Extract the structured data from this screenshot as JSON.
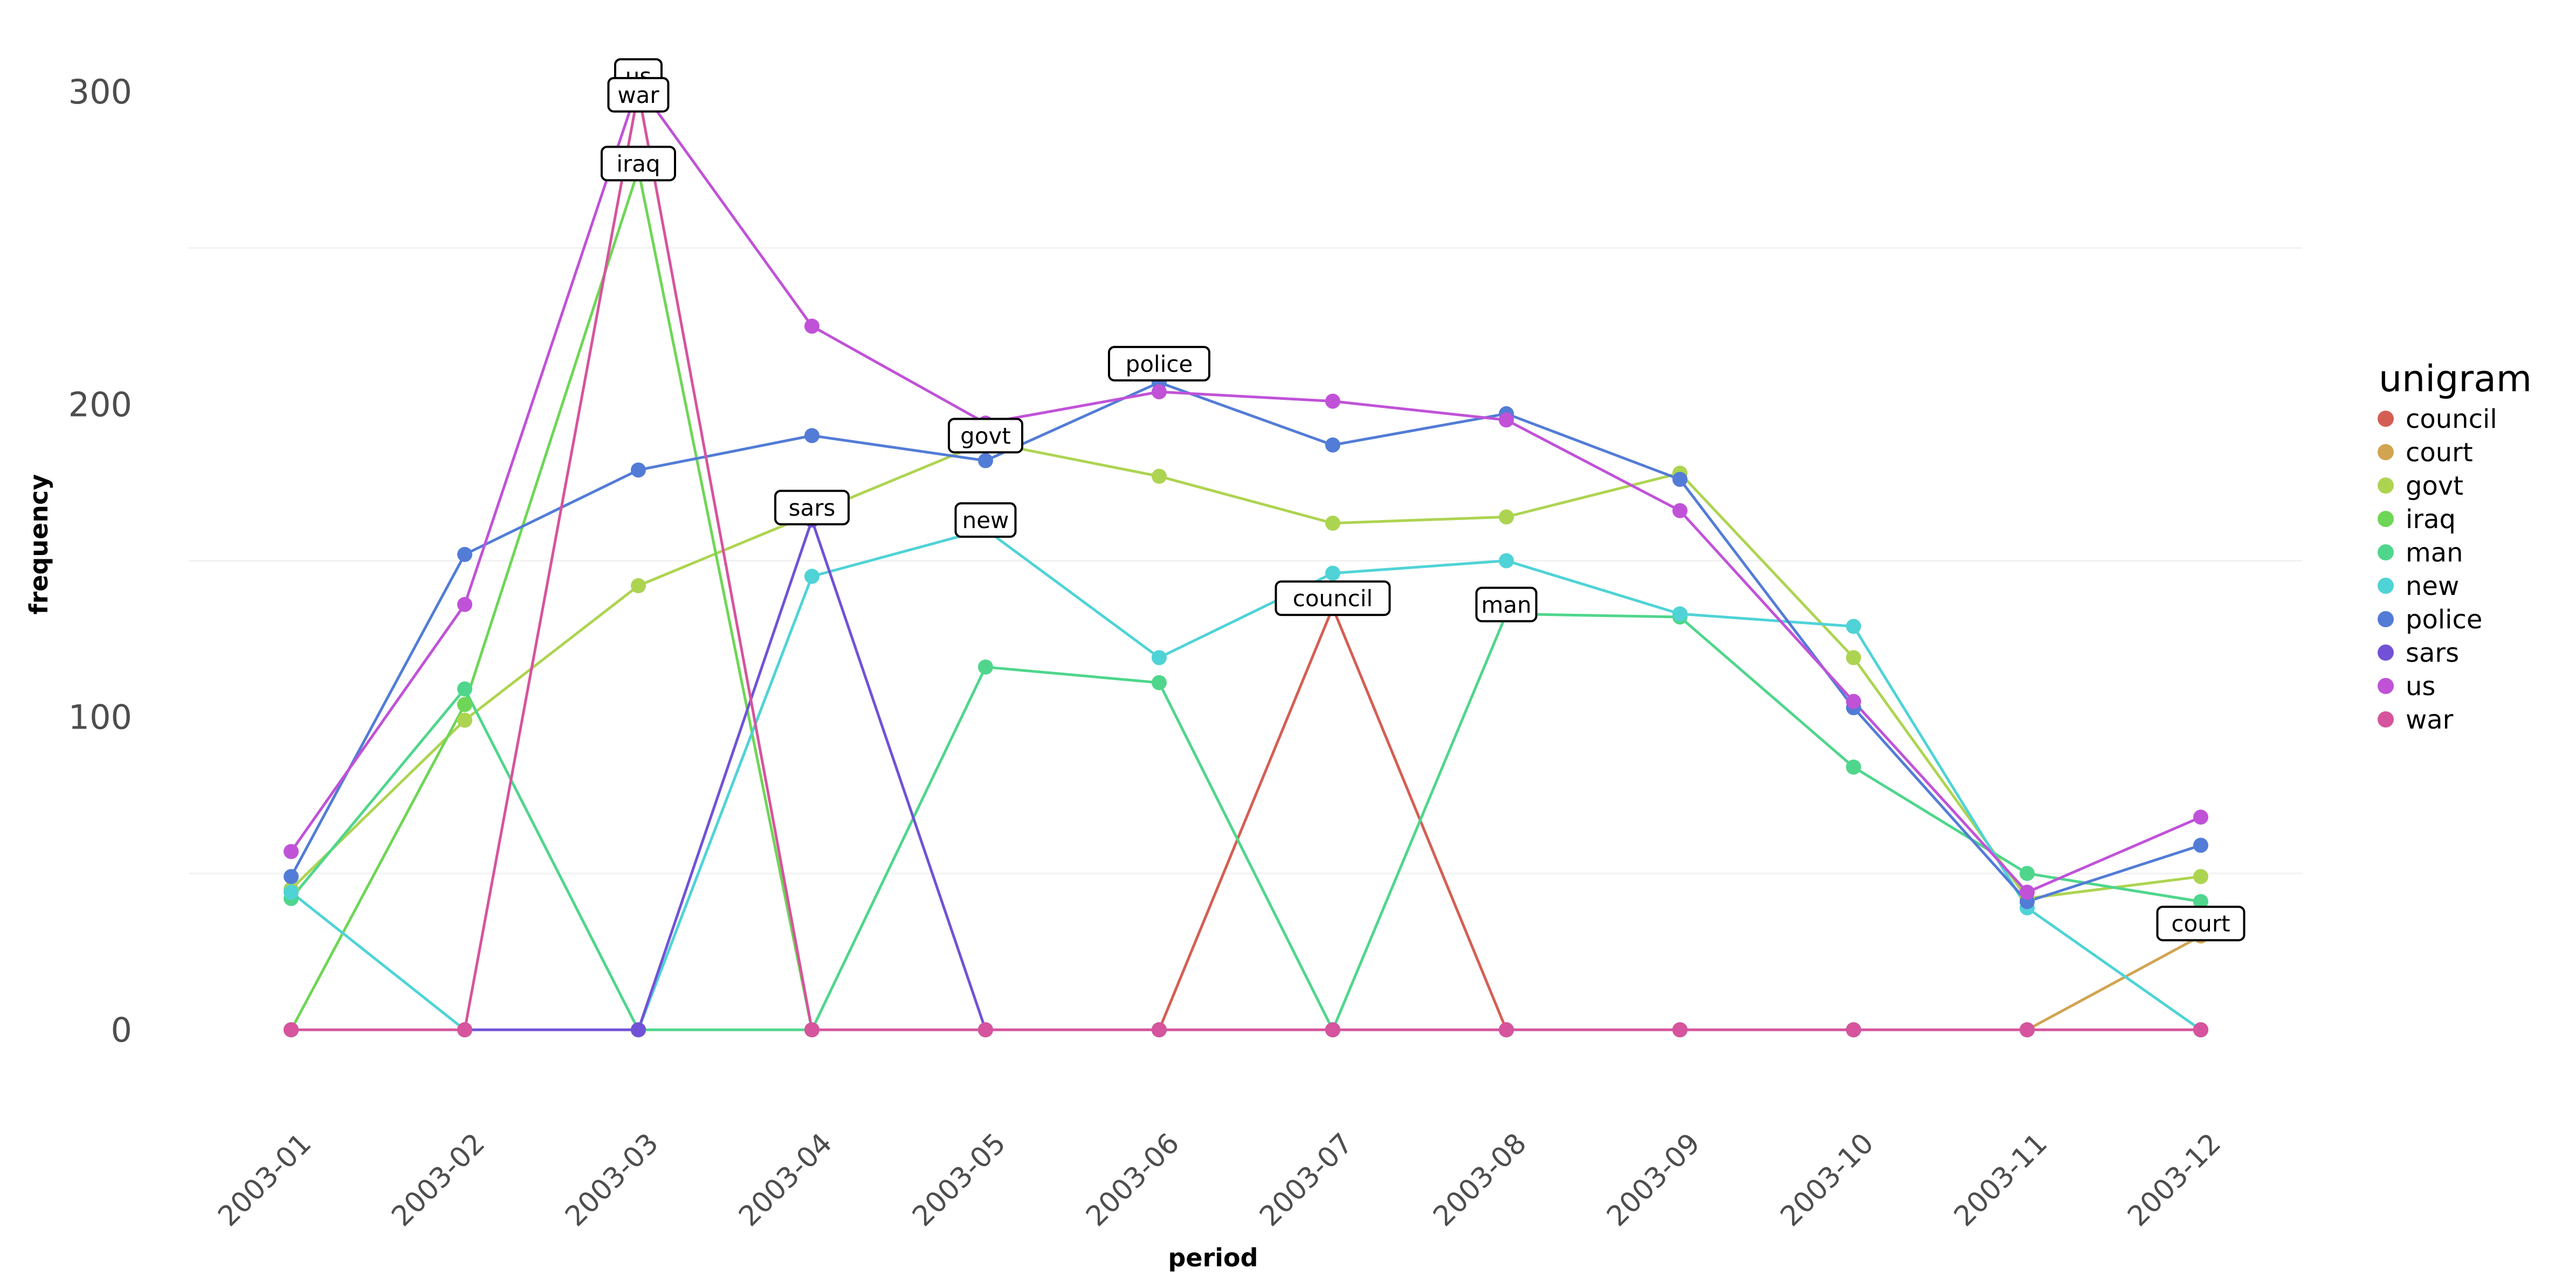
{
  "chart_data": {
    "type": "line",
    "xlabel": "period",
    "ylabel": "frequency",
    "categories": [
      "2003-01",
      "2003-02",
      "2003-03",
      "2003-04",
      "2003-05",
      "2003-06",
      "2003-07",
      "2003-08",
      "2003-09",
      "2003-10",
      "2003-11",
      "2003-12"
    ],
    "yticks": [
      0,
      100,
      200,
      300
    ],
    "ylim": [
      -30,
      320
    ],
    "grid": "horizontal",
    "legend": {
      "title": "unigram",
      "placement": "right"
    },
    "series": [
      {
        "name": "council",
        "color": "#D55E54",
        "values": [
          0,
          0,
          0,
          0,
          0,
          0,
          135,
          0,
          0,
          0,
          0,
          0
        ]
      },
      {
        "name": "court",
        "color": "#D1A452",
        "values": [
          0,
          0,
          0,
          0,
          0,
          0,
          0,
          0,
          0,
          0,
          0,
          30
        ]
      },
      {
        "name": "govt",
        "color": "#ADD451",
        "values": [
          45,
          99,
          142,
          165,
          188,
          177,
          162,
          164,
          178,
          119,
          42,
          49
        ]
      },
      {
        "name": "iraq",
        "color": "#6ED656",
        "values": [
          0,
          104,
          275,
          0,
          0,
          0,
          0,
          0,
          0,
          0,
          0,
          0
        ]
      },
      {
        "name": "man",
        "color": "#4FD68C",
        "values": [
          42,
          109,
          0,
          0,
          116,
          111,
          0,
          133,
          132,
          84,
          50,
          41
        ]
      },
      {
        "name": "new",
        "color": "#4FD3D6",
        "values": [
          44,
          0,
          0,
          145,
          160,
          119,
          146,
          150,
          133,
          129,
          39,
          0
        ]
      },
      {
        "name": "police",
        "color": "#527CD6",
        "values": [
          49,
          152,
          179,
          190,
          182,
          207,
          187,
          197,
          176,
          103,
          41,
          59
        ]
      },
      {
        "name": "sars",
        "color": "#7152D6",
        "values": [
          0,
          0,
          0,
          163,
          0,
          0,
          0,
          0,
          0,
          0,
          0,
          0
        ]
      },
      {
        "name": "us",
        "color": "#C052D8",
        "values": [
          57,
          136,
          302,
          225,
          194,
          204,
          201,
          195,
          166,
          105,
          44,
          68
        ]
      },
      {
        "name": "war",
        "color": "#D6549D",
        "values": [
          0,
          0,
          300,
          0,
          0,
          0,
          0,
          0,
          0,
          0,
          0,
          0
        ]
      }
    ],
    "annotations": [
      {
        "label": "us",
        "x": "2003-03",
        "y": 305
      },
      {
        "label": "war",
        "x": "2003-03",
        "y": 299
      },
      {
        "label": "iraq",
        "x": "2003-03",
        "y": 277
      },
      {
        "label": "sars",
        "x": "2003-04",
        "y": 167
      },
      {
        "label": "govt",
        "x": "2003-05",
        "y": 190
      },
      {
        "label": "new",
        "x": "2003-05",
        "y": 163
      },
      {
        "label": "police",
        "x": "2003-06",
        "y": 213
      },
      {
        "label": "council",
        "x": "2003-07",
        "y": 138
      },
      {
        "label": "man",
        "x": "2003-08",
        "y": 136
      },
      {
        "label": "court",
        "x": "2003-12",
        "y": 34
      }
    ]
  }
}
